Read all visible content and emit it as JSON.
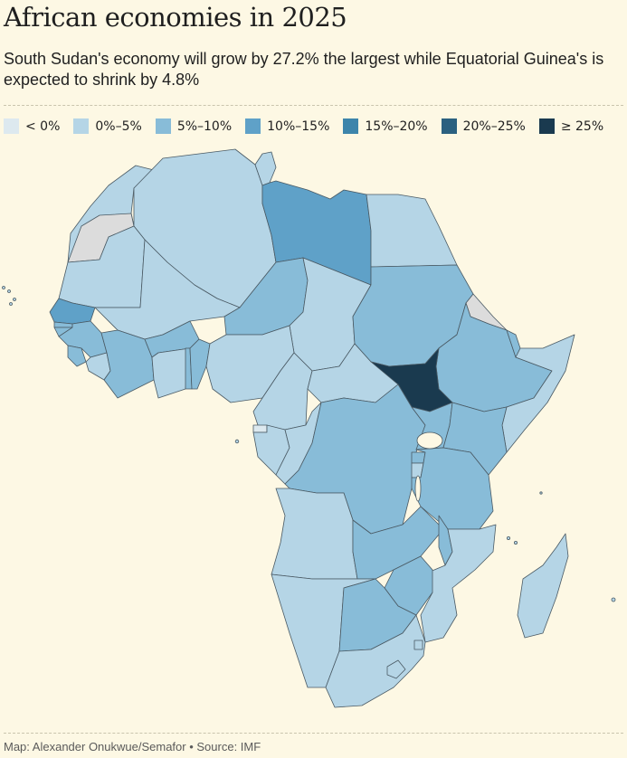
{
  "header": {
    "title": "African economies in 2025",
    "subtitle": "South Sudan's economy will grow by 27.2% the largest while Equatorial Guinea's is expected to shrink by 4.8%"
  },
  "legend": [
    {
      "label": "< 0%",
      "color": "#dde9ef"
    },
    {
      "label": "0%–5%",
      "color": "#b5d5e6"
    },
    {
      "label": "5%–10%",
      "color": "#88bcd8"
    },
    {
      "label": "10%–15%",
      "color": "#5fa1c8"
    },
    {
      "label": "15%–20%",
      "color": "#3d85ab"
    },
    {
      "label": "20%–25%",
      "color": "#2b6180"
    },
    {
      "label": "≥ 25%",
      "color": "#1a3a4f"
    }
  ],
  "map": {
    "no_data_color": "#dcdcdc",
    "countries": {
      "morocco": 1,
      "western-sahara": -1,
      "algeria": 1,
      "tunisia": 1,
      "libya": 3,
      "egypt": 1,
      "mauritania": 1,
      "mali": 1,
      "niger": 2,
      "chad": 1,
      "sudan": 2,
      "eritrea": -1,
      "ethiopia": 2,
      "djibouti": 2,
      "somalia": 1,
      "senegal": 3,
      "gambia": 2,
      "guinea-bissau": 2,
      "guinea": 2,
      "sierra-leone": 2,
      "liberia": 1,
      "cote-divoire": 2,
      "burkina-faso": 2,
      "ghana": 1,
      "togo": 2,
      "benin": 2,
      "nigeria": 1,
      "cameroon": 1,
      "central-african-republic": 1,
      "south-sudan": 6,
      "equatorial-guinea": 0,
      "gabon": 1,
      "republic-of-congo": 1,
      "dr-congo": 2,
      "uganda": 2,
      "kenya": 2,
      "rwanda": 2,
      "burundi": 1,
      "tanzania": 2,
      "angola": 1,
      "zambia": 2,
      "malawi": 2,
      "mozambique": 1,
      "zimbabwe": 2,
      "namibia": 1,
      "botswana": 2,
      "south-africa": 1,
      "lesotho": 1,
      "eswatini": 1,
      "madagascar": 1
    }
  },
  "footer": {
    "source": "Map: Alexander Onukwue/Semafor • Source: IMF"
  }
}
